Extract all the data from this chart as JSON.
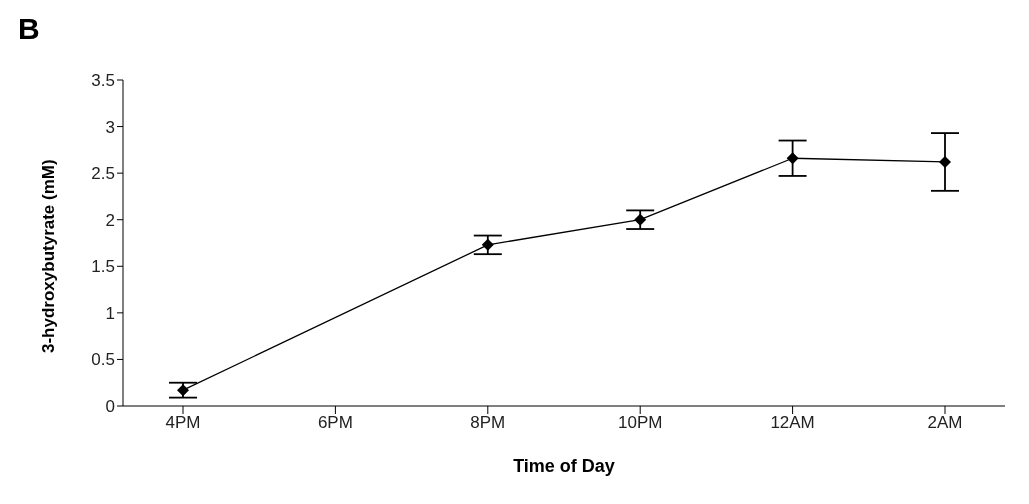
{
  "chart_data": {
    "type": "line",
    "title": "B",
    "xlabel": "Time of Day",
    "ylabel": "3-hydroxybutyrate (mM)",
    "categories": [
      "4PM",
      "6PM",
      "8PM",
      "10PM",
      "12AM",
      "2AM"
    ],
    "series": [
      {
        "color": "#000000",
        "values": [
          0.17,
          null,
          1.73,
          2.0,
          2.66,
          2.62
        ],
        "errors": [
          0.08,
          null,
          0.1,
          0.1,
          0.19,
          0.31
        ]
      }
    ],
    "ylim": [
      0,
      3.5
    ],
    "yticks": [
      0,
      0.5,
      1,
      1.5,
      2,
      2.5,
      3,
      3.5
    ],
    "grid": false,
    "legend": false,
    "marker": "diamond",
    "line_style": "solid"
  }
}
